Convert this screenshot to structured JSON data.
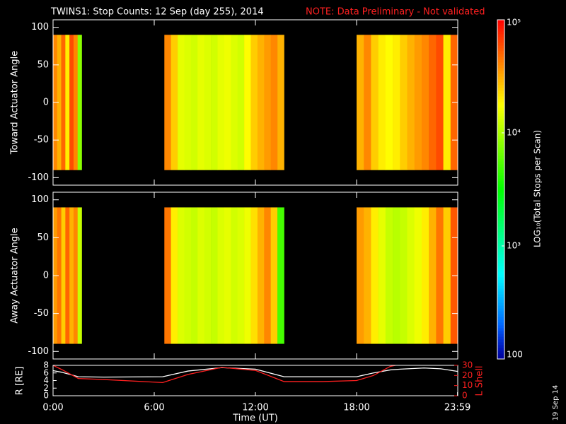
{
  "chart_data": [
    {
      "type": "heatmap",
      "title": "TWINS1: Stop Counts: 12 Sep (day 255), 2014",
      "subtitle": "NOTE: Data Preliminary - Not validated",
      "subtitle_color": "#ff2020",
      "ylabel": "Toward Actuator Angle",
      "xlim": [
        0,
        24
      ],
      "xticks": [
        0,
        6,
        12,
        18,
        24
      ],
      "ylim": [
        -110,
        110
      ],
      "yticks": [
        -100,
        -50,
        0,
        50,
        100
      ],
      "angle_range": [
        -90,
        90
      ],
      "colorbar": {
        "label": "LOG₁₀(Total Stops per Scan)",
        "clim": [
          100,
          100000
        ],
        "log": true,
        "ticks": [
          {
            "value": 100000,
            "label": "10⁵"
          },
          {
            "value": 10000,
            "label": "10⁴"
          },
          {
            "value": 1000,
            "label": "10³"
          },
          100
        ]
      },
      "segments": [
        {
          "start": 0,
          "end": 1.7,
          "values": [
            40000,
            30000,
            50000,
            20000,
            60000,
            40000,
            8000
          ]
        },
        {
          "start": 6.6,
          "end": 13.7,
          "values": [
            40000,
            25000,
            15000,
            14000,
            13000,
            15000,
            14000,
            13000,
            15000,
            16000,
            14000,
            13000,
            18000,
            25000,
            30000,
            35000,
            40000,
            30000
          ]
        },
        {
          "start": 18,
          "end": 24,
          "values": [
            30000,
            40000,
            25000,
            20000,
            18000,
            20000,
            25000,
            30000,
            35000,
            40000,
            50000,
            60000,
            20000,
            50000
          ]
        }
      ]
    },
    {
      "type": "heatmap",
      "ylabel": "Away Actuator Angle",
      "xlim": [
        0,
        24
      ],
      "xticks": [
        0,
        6,
        12,
        18,
        24
      ],
      "ylim": [
        -110,
        110
      ],
      "yticks": [
        -100,
        -50,
        0,
        50,
        100
      ],
      "angle_range": [
        -90,
        90
      ],
      "segments": [
        {
          "start": 0,
          "end": 1.7,
          "values": [
            35000,
            45000,
            25000,
            50000,
            30000,
            40000,
            12000
          ]
        },
        {
          "start": 6.6,
          "end": 13.7,
          "values": [
            45000,
            20000,
            14000,
            13000,
            12000,
            14000,
            13000,
            12000,
            14000,
            15000,
            13000,
            14000,
            16000,
            22000,
            30000,
            40000,
            25000,
            5000
          ]
        },
        {
          "start": 18,
          "end": 24,
          "values": [
            35000,
            30000,
            20000,
            15000,
            12000,
            11000,
            12000,
            14000,
            16000,
            20000,
            30000,
            45000,
            25000,
            55000
          ]
        }
      ]
    },
    {
      "type": "line",
      "xlabel": "Time (UT)",
      "ylabel": "R [RE]",
      "y2label": "L Shell",
      "xlim": [
        0,
        24
      ],
      "xticks": [
        {
          "value": 0,
          "label": "0:00"
        },
        {
          "value": 6,
          "label": "6:00"
        },
        {
          "value": 12,
          "label": "12:00"
        },
        {
          "value": 18,
          "label": "18:00"
        },
        {
          "value": 23.983,
          "label": "23:59"
        }
      ],
      "ylim": [
        0,
        8
      ],
      "yticks": [
        0,
        2,
        4,
        6,
        8
      ],
      "y2lim": [
        0,
        30
      ],
      "y2ticks": [
        0,
        10,
        20,
        30
      ],
      "x": [
        0,
        0.5,
        1.5,
        3,
        6.5,
        8,
        10,
        12,
        13.7,
        16,
        18,
        19,
        20,
        20.6,
        22,
        23,
        24
      ],
      "series": [
        {
          "name": "R",
          "color": "#ffffff",
          "values": [
            6.6,
            6.2,
            5,
            4.9,
            5,
            6.5,
            7.4,
            7,
            5,
            5,
            5,
            6,
            6.8,
            7,
            7.3,
            7.1,
            6.4
          ]
        },
        {
          "name": "L Shell",
          "color": "#ff2020",
          "axis": "y2",
          "values": [
            30,
            26,
            17,
            16,
            13,
            21,
            28,
            25,
            14,
            14,
            15,
            20,
            29,
            31,
            null,
            null,
            null
          ]
        }
      ],
      "stamp": "19 Sep 14"
    }
  ]
}
